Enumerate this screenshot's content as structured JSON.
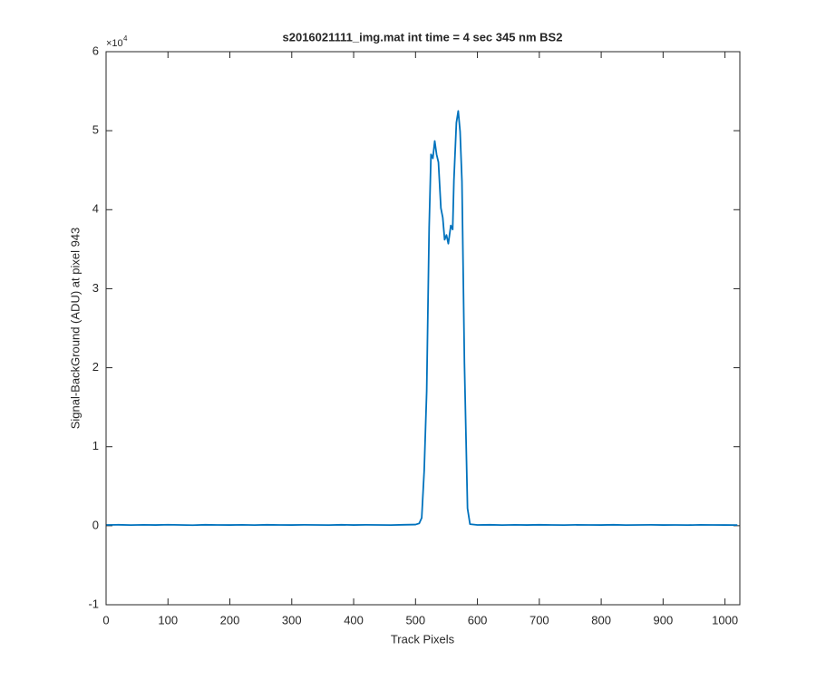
{
  "chart_data": {
    "type": "line",
    "title": "s2016021111_img.mat int time = 4 sec  345 nm BS2",
    "xlabel": "Track Pixels",
    "ylabel": "Signal-BackGround (ADU) at pixel 943",
    "y_scale_label": "×10",
    "y_scale_exponent": 4,
    "color": "#0072bd",
    "xlim": [
      0,
      1024
    ],
    "ylim": [
      -1,
      6
    ],
    "xticks": [
      0,
      100,
      200,
      300,
      400,
      500,
      600,
      700,
      800,
      900,
      1000
    ],
    "yticks": [
      -1,
      0,
      1,
      2,
      3,
      4,
      5,
      6
    ],
    "x": [
      0,
      20,
      40,
      60,
      80,
      100,
      120,
      140,
      160,
      180,
      200,
      220,
      240,
      260,
      280,
      300,
      320,
      340,
      360,
      380,
      400,
      420,
      440,
      460,
      480,
      500,
      506,
      510,
      514,
      518,
      522,
      525,
      528,
      531,
      534,
      537,
      541,
      544,
      547,
      550,
      553,
      557,
      560,
      562,
      566,
      569,
      572,
      575,
      579,
      584,
      588,
      600,
      620,
      640,
      660,
      680,
      700,
      720,
      740,
      760,
      780,
      800,
      820,
      840,
      860,
      880,
      900,
      920,
      940,
      960,
      980,
      1000,
      1020
    ],
    "values": [
      0.01,
      0.012,
      0.008,
      0.011,
      0.009,
      0.013,
      0.01,
      0.007,
      0.012,
      0.01,
      0.009,
      0.011,
      0.008,
      0.012,
      0.01,
      0.009,
      0.011,
      0.01,
      0.008,
      0.012,
      0.009,
      0.011,
      0.01,
      0.008,
      0.012,
      0.015,
      0.03,
      0.1,
      0.7,
      1.7,
      3.78,
      4.7,
      4.65,
      4.87,
      4.7,
      4.6,
      4.02,
      3.9,
      3.62,
      3.68,
      3.57,
      3.8,
      3.75,
      4.37,
      5.1,
      5.25,
      4.99,
      4.36,
      2.06,
      0.22,
      0.02,
      0.01,
      0.012,
      0.008,
      0.011,
      0.009,
      0.012,
      0.01,
      0.008,
      0.011,
      0.01,
      0.009,
      0.012,
      0.008,
      0.01,
      0.011,
      0.009,
      0.01,
      0.008,
      0.011,
      0.01,
      0.009,
      0.008
    ]
  }
}
